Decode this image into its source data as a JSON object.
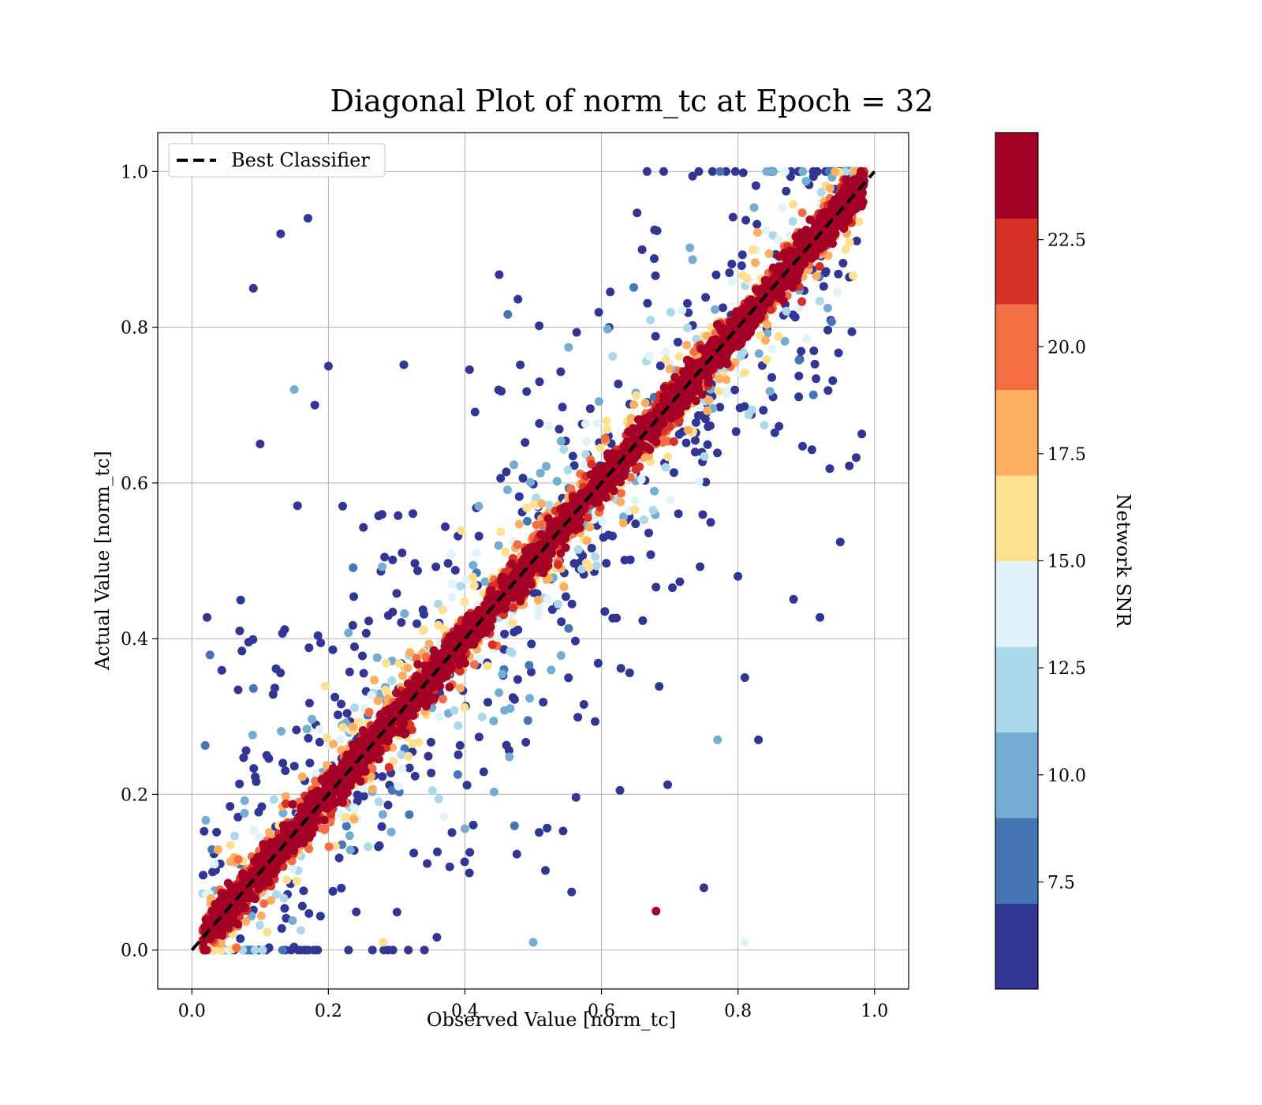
{
  "chart_data": {
    "type": "scatter",
    "title": "Diagonal Plot of norm_tc at Epoch = 32",
    "xlabel": "Observed Value [norm_tc]",
    "ylabel": "Actual Value [norm_tc]",
    "xlim": [
      -0.05,
      1.05
    ],
    "ylim": [
      -0.05,
      1.05
    ],
    "xticks": [
      0.0,
      0.2,
      0.4,
      0.6,
      0.8,
      1.0
    ],
    "xtick_labels": [
      "0.0",
      "0.2",
      "0.4",
      "0.6",
      "0.8",
      "1.0"
    ],
    "yticks": [
      0.0,
      0.2,
      0.4,
      0.6,
      0.8,
      1.0
    ],
    "ytick_labels": [
      "0.0",
      "0.2",
      "0.4",
      "0.6",
      "0.8",
      "1.0"
    ],
    "grid": true,
    "legend": {
      "location": "top-left",
      "entries": [
        "Best Classifier"
      ]
    },
    "reference_line": {
      "name": "Best Classifier",
      "x": [
        0.0,
        1.0
      ],
      "y": [
        0.0,
        1.0
      ],
      "style": "dashed",
      "color": "#000000"
    },
    "colorbar": {
      "label": "Network SNR",
      "min": 5.0,
      "max": 25.0,
      "levels": [
        5.0,
        7.0,
        9.0,
        11.0,
        13.0,
        15.0,
        17.0,
        19.0,
        21.0,
        23.0,
        25.0
      ],
      "colors": [
        "#313695",
        "#4575b4",
        "#74add1",
        "#abd9e9",
        "#e0f3f8",
        "#fee090",
        "#fdae61",
        "#f46d43",
        "#d73027",
        "#a50026"
      ],
      "ticks": [
        7.5,
        10.0,
        12.5,
        15.0,
        17.5,
        20.0,
        22.5
      ],
      "tick_labels": [
        "7.5",
        "10.0",
        "12.5",
        "15.0",
        "17.5",
        "20.0",
        "22.5"
      ]
    },
    "point_distribution": {
      "note": "Points cluster tightly along y = x for high SNR; low-SNR points scatter widely.",
      "high_snr_spread": 0.05,
      "low_snr_spread": 0.25
    },
    "sample_points": [
      {
        "x": 0.09,
        "y": 0.85,
        "snr": 5.5
      },
      {
        "x": 0.13,
        "y": 0.92,
        "snr": 5.5
      },
      {
        "x": 0.17,
        "y": 0.94,
        "snr": 5.5
      },
      {
        "x": 0.1,
        "y": 0.65,
        "snr": 5.5
      },
      {
        "x": 0.15,
        "y": 0.72,
        "snr": 10.5
      },
      {
        "x": 0.18,
        "y": 0.7,
        "snr": 5.5
      },
      {
        "x": 0.07,
        "y": 0.41,
        "snr": 5.5
      },
      {
        "x": 0.2,
        "y": 0.75,
        "snr": 5.5
      },
      {
        "x": 0.8,
        "y": 0.48,
        "snr": 5.5
      },
      {
        "x": 0.83,
        "y": 0.27,
        "snr": 5.5
      },
      {
        "x": 0.81,
        "y": 0.35,
        "snr": 5.5
      },
      {
        "x": 0.77,
        "y": 0.27,
        "snr": 10.5
      },
      {
        "x": 0.75,
        "y": 0.08,
        "snr": 5.5
      },
      {
        "x": 0.81,
        "y": 0.01,
        "snr": 13.5
      },
      {
        "x": 0.68,
        "y": 0.05,
        "snr": 24.0
      },
      {
        "x": 0.28,
        "y": 0.01,
        "snr": 15.5
      },
      {
        "x": 0.5,
        "y": 0.01,
        "snr": 10.5
      }
    ]
  }
}
